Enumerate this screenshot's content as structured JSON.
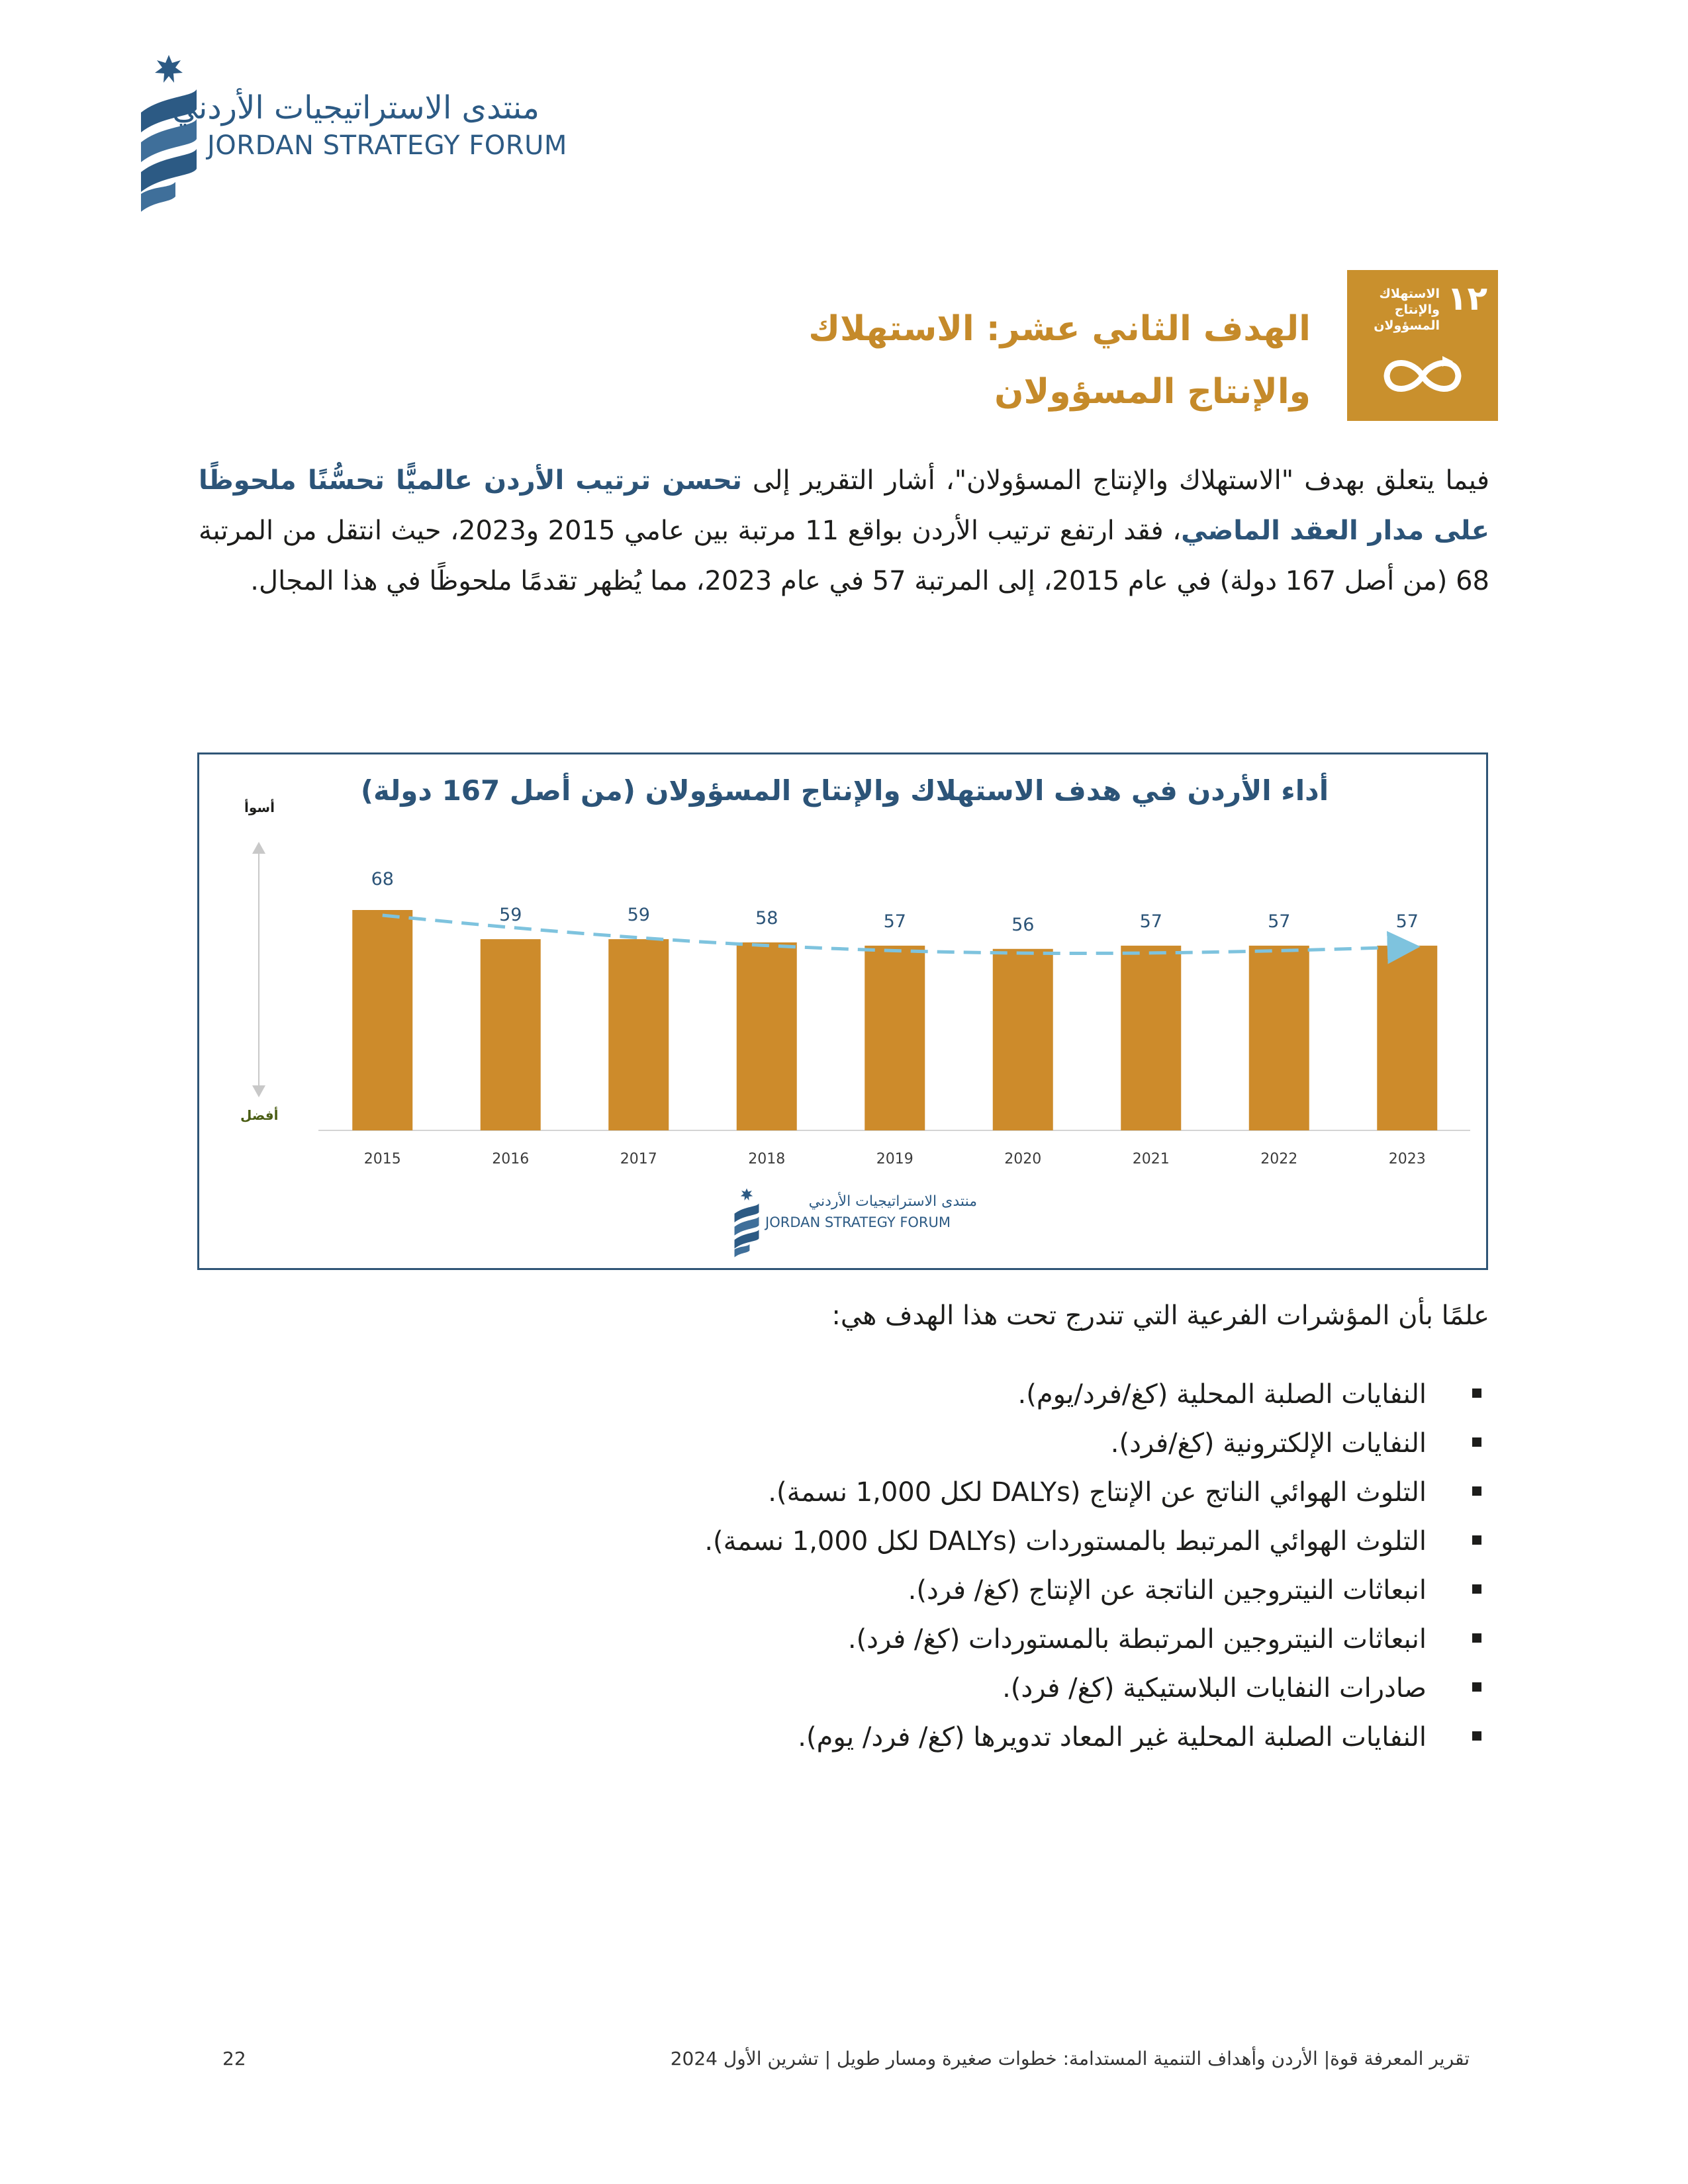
{
  "header": {
    "logo_arabic": "منتدى الاستراتيجيات الأردني",
    "logo_english": "JORDAN STRATEGY FORUM"
  },
  "sdg_badge": {
    "number": "١٢",
    "label": "الاستهلاك والإنتاج المسؤولان",
    "color": "#c9902d"
  },
  "goal_heading": {
    "line1": "الهدف الثاني عشر: الاستهلاك",
    "line2": "والإنتاج المسؤولان"
  },
  "intro": {
    "part1": "فيما يتعلق بهدف \"الاستهلاك والإنتاج المسؤولان\"، أشار التقرير إلى ",
    "emphasis1": "تحسن ترتيب الأردن عالميًّا تحسُّنًا ملحوظًا على مدار العقد الماضي",
    "part2": "، فقد ارتفع ترتيب الأردن بواقع 11 مرتبة بين عامي 2015 و2023، حيث انتقل من المرتبة 68 (من أصل 167 دولة) في عام 2015، إلى المرتبة 57 في عام 2023، مما يُظهر تقدمًا ملحوظًا في هذا المجال."
  },
  "chart": {
    "axis_worse": "أسوأ",
    "axis_better": "أفضل",
    "logo_arabic": "منتدى الاستراتيجيات الأردني",
    "logo_english": "JORDAN STRATEGY FORUM"
  },
  "chart_data": {
    "type": "bar",
    "title": "أداء الأردن في هدف الاستهلاك والإنتاج المسؤولان (من أصل 167 دولة)",
    "categories": [
      "2015",
      "2016",
      "2017",
      "2018",
      "2019",
      "2020",
      "2021",
      "2022",
      "2023"
    ],
    "values": [
      68,
      59,
      59,
      58,
      57,
      56,
      57,
      57,
      57
    ],
    "bar_color": "#cd8b2b",
    "trend_color": "#7ec3de",
    "trend": "dashed",
    "grid": false
  },
  "indicators": {
    "intro": "علمًا بأن المؤشرات الفرعية التي تندرج تحت هذا الهدف هي:",
    "items": [
      "النفايات الصلبة المحلية (كغ/فرد/يوم).",
      "النفايات الإلكترونية (كغ/فرد).",
      "التلوث الهوائي الناتج عن الإنتاج (DALYs لكل 1,000 نسمة).",
      "التلوث الهوائي المرتبط بالمستوردات (DALYs لكل 1,000 نسمة).",
      "انبعاثات النيتروجين الناتجة عن الإنتاج (كغ/ فرد).",
      "انبعاثات النيتروجين المرتبطة بالمستوردات (كغ/ فرد).",
      "صادرات النفايات البلاستيكية (كغ/ فرد).",
      "النفايات الصلبة المحلية غير المعاد تدويرها (كغ/ فرد/ يوم)."
    ]
  },
  "footer": {
    "text": "تقرير المعرفة قوة| الأردن وأهداف التنمية المستدامة: خطوات صغيرة ومسار طويل | تشرين الأول 2024",
    "page_number": "22"
  }
}
